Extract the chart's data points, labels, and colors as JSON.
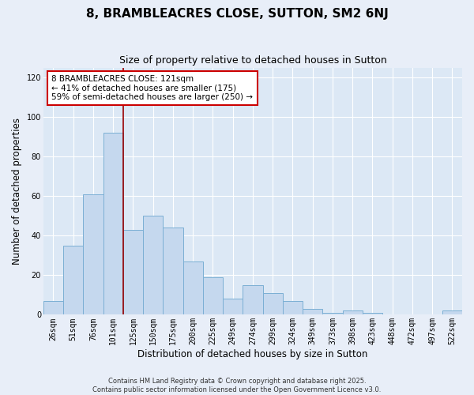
{
  "title": "8, BRAMBLEACRES CLOSE, SUTTON, SM2 6NJ",
  "subtitle": "Size of property relative to detached houses in Sutton",
  "xlabel": "Distribution of detached houses by size in Sutton",
  "ylabel": "Number of detached properties",
  "bar_color": "#c5d8ee",
  "bar_edge_color": "#7bafd4",
  "categories": [
    "26sqm",
    "51sqm",
    "76sqm",
    "101sqm",
    "125sqm",
    "150sqm",
    "175sqm",
    "200sqm",
    "225sqm",
    "249sqm",
    "274sqm",
    "299sqm",
    "324sqm",
    "349sqm",
    "373sqm",
    "398sqm",
    "423sqm",
    "448sqm",
    "472sqm",
    "497sqm",
    "522sqm"
  ],
  "values": [
    7,
    35,
    61,
    92,
    43,
    50,
    44,
    27,
    19,
    8,
    15,
    11,
    7,
    3,
    1,
    2,
    1,
    0,
    0,
    0,
    2
  ],
  "vline_x_index": 3.5,
  "vline_color": "#990000",
  "annotation_line1": "8 BRAMBLEACRES CLOSE: 121sqm",
  "annotation_line2": "← 41% of detached houses are smaller (175)",
  "annotation_line3": "59% of semi-detached houses are larger (250) →",
  "annotation_box_color": "white",
  "annotation_box_edge_color": "#cc0000",
  "ylim": [
    0,
    125
  ],
  "yticks": [
    0,
    20,
    40,
    60,
    80,
    100,
    120
  ],
  "footer1": "Contains HM Land Registry data © Crown copyright and database right 2025.",
  "footer2": "Contains public sector information licensed under the Open Government Licence v3.0.",
  "bg_color": "#e8eef8",
  "plot_bg_color": "#dce8f5",
  "grid_color": "#ffffff",
  "title_fontsize": 11,
  "subtitle_fontsize": 9,
  "tick_fontsize": 7,
  "label_fontsize": 8.5,
  "annotation_fontsize": 7.5,
  "footer_fontsize": 6
}
